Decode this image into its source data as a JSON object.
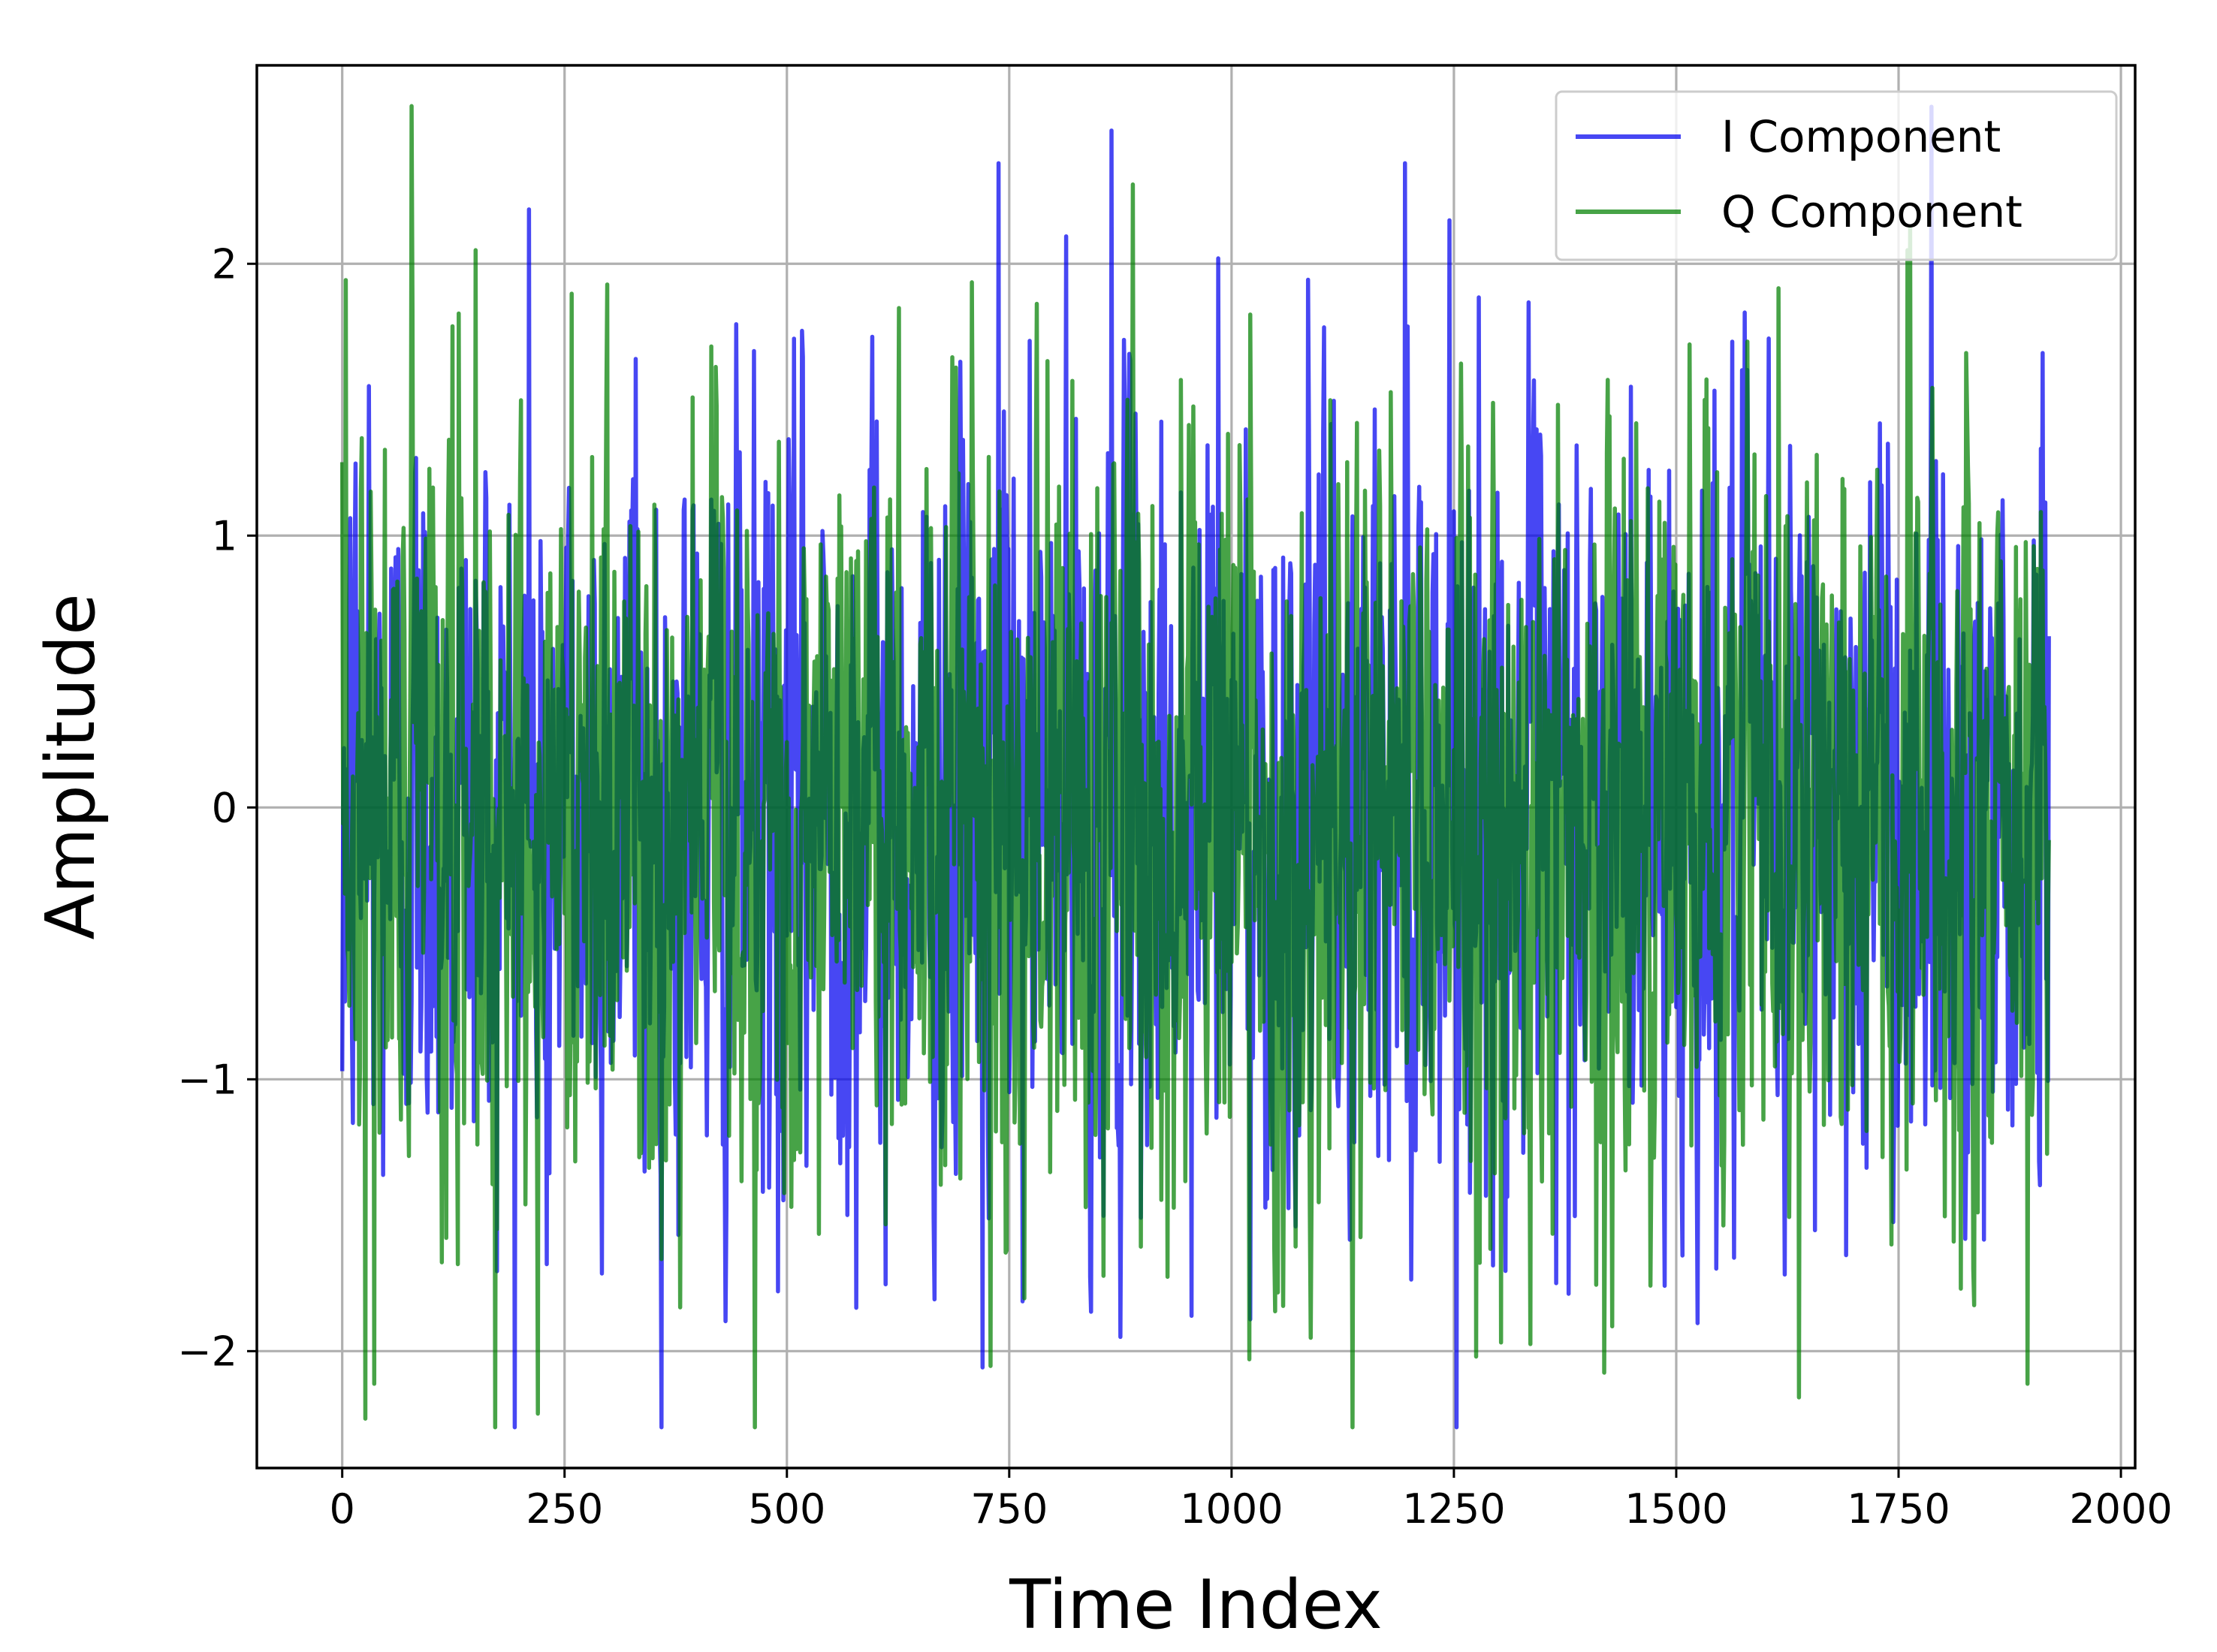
{
  "chart_data": {
    "type": "line",
    "title": "",
    "xlabel": "Time Index",
    "ylabel": "Amplitude",
    "xlim": [
      -96,
      2016
    ],
    "ylim": [
      -2.43,
      2.73
    ],
    "xticks": [
      0,
      250,
      500,
      750,
      1000,
      1250,
      1500,
      1750,
      2000
    ],
    "xtick_labels": [
      "0",
      "250",
      "500",
      "750",
      "1000",
      "1250",
      "1500",
      "1750",
      "2000"
    ],
    "yticks": [
      -2,
      -1,
      0,
      1,
      2
    ],
    "ytick_labels": [
      "−2",
      "−1",
      "0",
      "1",
      "2"
    ],
    "grid": true,
    "legend_position": "top-right",
    "n_samples": 1920,
    "series": [
      {
        "name": "I Component",
        "color": "#0000ee",
        "opacity": 0.72,
        "mean": 0.0,
        "std": 0.68,
        "key_points": [
          {
            "x": 0,
            "y": -0.97
          },
          {
            "x": 30,
            "y": 1.55
          },
          {
            "x": 210,
            "y": 2.2
          },
          {
            "x": 230,
            "y": -1.68
          },
          {
            "x": 330,
            "y": 1.65
          },
          {
            "x": 490,
            "y": -1.78
          },
          {
            "x": 720,
            "y": -2.06
          },
          {
            "x": 738,
            "y": 2.37
          },
          {
            "x": 865,
            "y": 2.49
          },
          {
            "x": 955,
            "y": -1.87
          },
          {
            "x": 985,
            "y": 2.02
          },
          {
            "x": 1195,
            "y": 2.37
          },
          {
            "x": 1245,
            "y": 2.16
          },
          {
            "x": 1365,
            "y": -1.75
          },
          {
            "x": 1910,
            "y": 1.32
          },
          {
            "x": 1919,
            "y": 0.63
          }
        ]
      },
      {
        "name": "Q Component",
        "color": "#008000",
        "opacity": 0.72,
        "mean": 0.0,
        "std": 0.7,
        "key_points": [
          {
            "x": 0,
            "y": 1.27
          },
          {
            "x": 4,
            "y": 1.94
          },
          {
            "x": 150,
            "y": 2.05
          },
          {
            "x": 130,
            "y": -1.68
          },
          {
            "x": 258,
            "y": 1.89
          },
          {
            "x": 1020,
            "y": -2.03
          },
          {
            "x": 1275,
            "y": -2.02
          },
          {
            "x": 1615,
            "y": 1.91
          },
          {
            "x": 1638,
            "y": -2.17
          },
          {
            "x": 1760,
            "y": 2.05
          },
          {
            "x": 1895,
            "y": -2.12
          },
          {
            "x": 1919,
            "y": -0.12
          }
        ]
      }
    ]
  }
}
